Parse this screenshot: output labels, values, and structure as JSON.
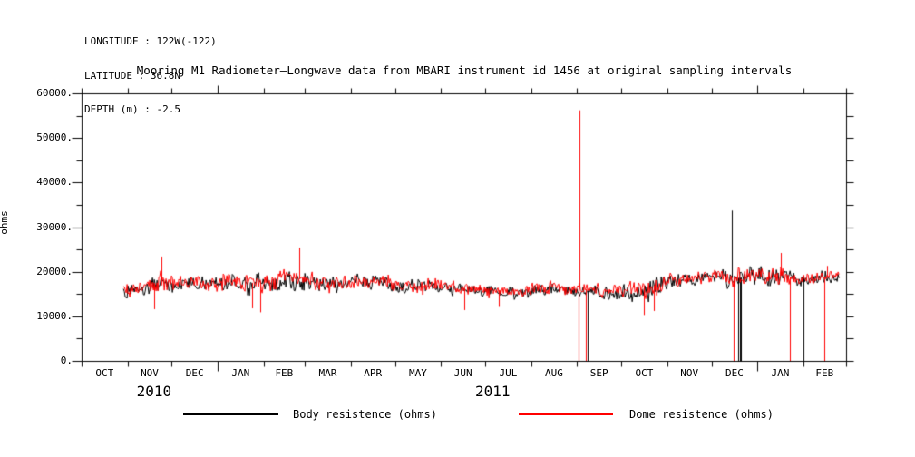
{
  "header": {
    "line1": "LONGITUDE : 122W(-122)",
    "line2": "LATITUDE : 36.8N",
    "line3": "DEPTH (m) : -2.5"
  },
  "title": "Mooring M1 Radiometer–Longwave data from MBARI instrument id 1456 at original sampling intervals",
  "chart_data": {
    "type": "line",
    "title": "Mooring M1 Radiometer–Longwave data from MBARI instrument id 1456 at original sampling intervals",
    "ylabel": "ohms",
    "xlabel": "",
    "ylim": [
      0,
      60000
    ],
    "y_major_step": 10000,
    "y_minor_step": 5000,
    "y_tick_labels": [
      "60000.",
      "50000.",
      "40000.",
      "30000.",
      "20000.",
      "10000.",
      "0."
    ],
    "grid": false,
    "legend_position": "bottom",
    "x_axis": {
      "start": "2010-10-01",
      "end": "2012-03-01",
      "total_days": 517,
      "month_ticks_days": [
        0,
        31,
        61,
        92,
        123,
        151,
        182,
        212,
        243,
        273,
        304,
        335,
        365,
        396,
        426,
        457,
        488,
        517
      ],
      "month_labels": [
        "OCT",
        "NOV",
        "DEC",
        "JAN",
        "FEB",
        "MAR",
        "APR",
        "MAY",
        "JUN",
        "JUL",
        "AUG",
        "SEP",
        "OCT",
        "NOV",
        "DEC",
        "JAN",
        "FEB"
      ],
      "year_tick_days": [
        92,
        457
      ],
      "year_labels": [
        {
          "label": "2010",
          "center_day": 49
        },
        {
          "label": "2011",
          "center_day": 278
        }
      ]
    },
    "legend": [
      {
        "label": "Body resistence (ohms)",
        "color": "#000000"
      },
      {
        "label": "Dome resistence (ohms)",
        "color": "#ff0000"
      }
    ],
    "series": [
      {
        "name": "Body resistence (ohms)",
        "color": "#000000",
        "uses_baseline_of": "Dome resistence (ohms)",
        "baseline_offset": -250,
        "amp_scale": 1.0,
        "seed": 7,
        "spikes_up": [
          {
            "day": 440,
            "value": 33700
          }
        ],
        "spikes_down_to_zero_days": [
          342,
          444,
          445,
          446,
          488
        ],
        "data_start_day": 28,
        "data_end_day": 512
      },
      {
        "name": "Dome resistence (ohms)",
        "color": "#ff0000",
        "seed": 3,
        "baseline": [
          [
            28,
            15500
          ],
          [
            35,
            16200
          ],
          [
            46,
            16800
          ],
          [
            54,
            18000
          ],
          [
            61,
            17400
          ],
          [
            75,
            17800
          ],
          [
            90,
            17500
          ],
          [
            100,
            17800
          ],
          [
            110,
            17400
          ],
          [
            123,
            17700
          ],
          [
            135,
            18100
          ],
          [
            147,
            18400
          ],
          [
            160,
            17600
          ],
          [
            172,
            17400
          ],
          [
            185,
            17800
          ],
          [
            200,
            17700
          ],
          [
            210,
            17400
          ],
          [
            222,
            17100
          ],
          [
            235,
            16900
          ],
          [
            246,
            16700
          ],
          [
            258,
            16300
          ],
          [
            270,
            16000
          ],
          [
            283,
            15800
          ],
          [
            295,
            15800
          ],
          [
            307,
            16000
          ],
          [
            320,
            16200
          ],
          [
            331,
            16300
          ],
          [
            343,
            16000
          ],
          [
            356,
            15800
          ],
          [
            368,
            15600
          ],
          [
            375,
            15900
          ],
          [
            381,
            16400
          ],
          [
            392,
            17400
          ],
          [
            405,
            18400
          ],
          [
            417,
            18800
          ],
          [
            429,
            19000
          ],
          [
            442,
            18800
          ],
          [
            454,
            19200
          ],
          [
            466,
            19500
          ],
          [
            475,
            19000
          ],
          [
            481,
            18800
          ],
          [
            491,
            18500
          ],
          [
            503,
            18800
          ],
          [
            512,
            19000
          ]
        ],
        "noise_amp": [
          [
            28,
            1500
          ],
          [
            40,
            1700
          ],
          [
            50,
            2400
          ],
          [
            58,
            2000
          ],
          [
            70,
            1700
          ],
          [
            90,
            1700
          ],
          [
            110,
            1800
          ],
          [
            123,
            2000
          ],
          [
            140,
            2100
          ],
          [
            151,
            1900
          ],
          [
            170,
            1700
          ],
          [
            190,
            1800
          ],
          [
            212,
            1700
          ],
          [
            240,
            1600
          ],
          [
            270,
            1500
          ],
          [
            300,
            1500
          ],
          [
            330,
            1500
          ],
          [
            350,
            1500
          ],
          [
            365,
            1800
          ],
          [
            378,
            2300
          ],
          [
            390,
            2300
          ],
          [
            400,
            1900
          ],
          [
            420,
            1800
          ],
          [
            440,
            1800
          ],
          [
            457,
            2000
          ],
          [
            470,
            2100
          ],
          [
            480,
            1700
          ],
          [
            500,
            1600
          ],
          [
            512,
            1400
          ]
        ],
        "peaks": [
          [
            54,
            23400
          ],
          [
            147,
            25400
          ],
          [
            473,
            24200
          ],
          [
            504,
            21300
          ]
        ],
        "dips": [
          [
            49,
            11600
          ],
          [
            115,
            11800
          ],
          [
            121,
            10900
          ],
          [
            259,
            11400
          ],
          [
            282,
            12100
          ],
          [
            380,
            10300
          ],
          [
            387,
            11200
          ]
        ],
        "spikes_up": [
          {
            "day": 337,
            "value": 56200
          }
        ],
        "spikes_down_to_zero_days": [
          336,
          341,
          441,
          479,
          502
        ],
        "data_start_day": 28,
        "data_end_day": 512
      }
    ]
  }
}
